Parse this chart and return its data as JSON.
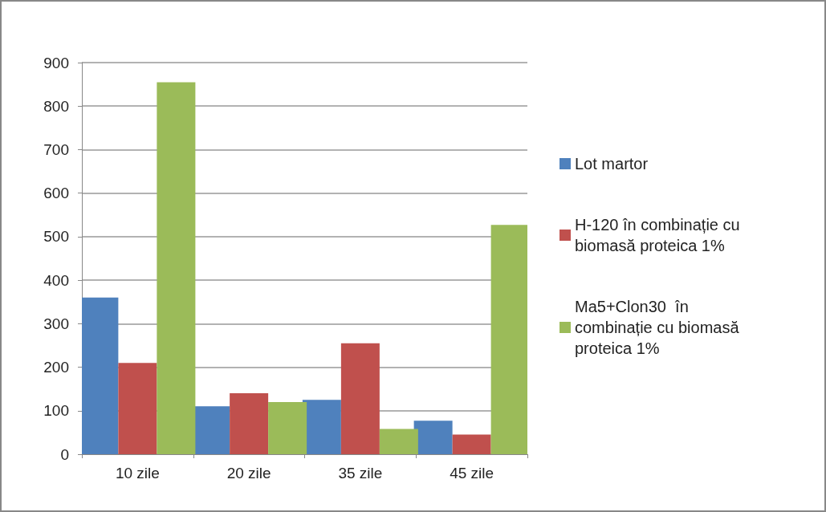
{
  "chart_data": {
    "type": "bar",
    "categories": [
      "10 zile",
      "20 zile",
      "35 zile",
      "45 zile"
    ],
    "series": [
      {
        "name": "Lot martor",
        "color": "#4f81bd",
        "values": [
          360,
          110,
          125,
          77
        ]
      },
      {
        "name": "H-120 în combinație cu biomasă proteica 1%",
        "color": "#c0504d",
        "values": [
          210,
          140,
          255,
          45
        ]
      },
      {
        "name": "Ma5+Clon30  în combinație cu biomasă proteica 1%",
        "color": "#9bbb59",
        "values": [
          855,
          120,
          58,
          527
        ]
      }
    ],
    "ylim": [
      0,
      900
    ],
    "yticks": [
      0,
      100,
      200,
      300,
      400,
      500,
      600,
      700,
      800,
      900
    ],
    "grid": "y",
    "legend": "right"
  }
}
